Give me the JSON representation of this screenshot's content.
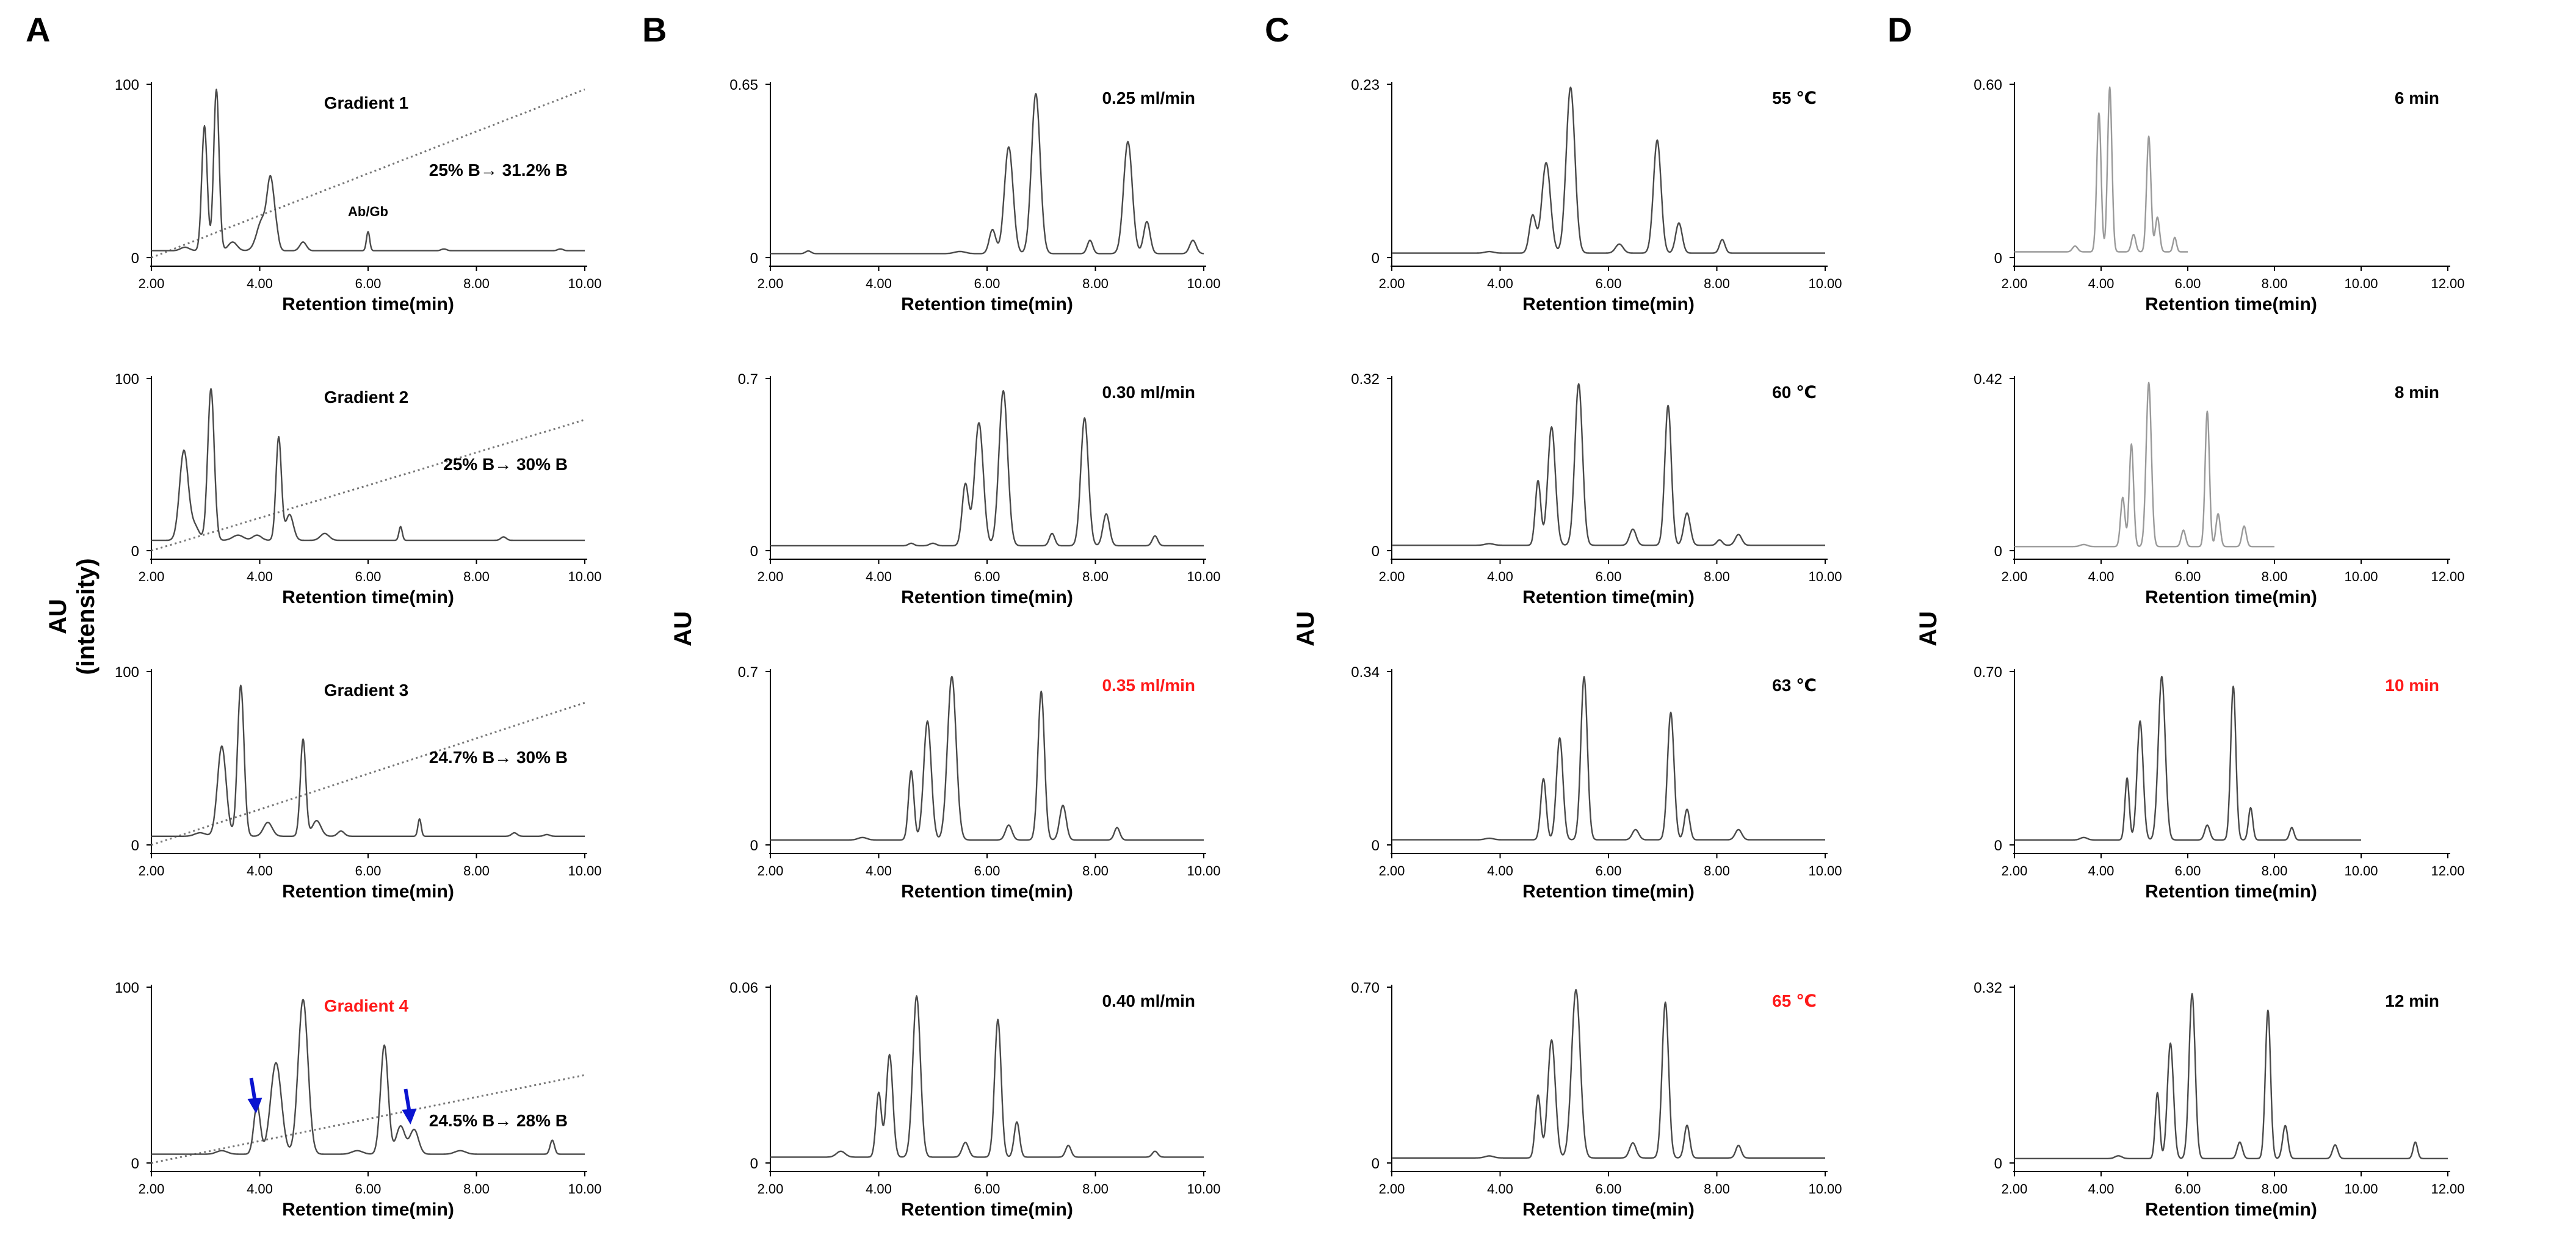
{
  "panel_letters": [
    "A",
    "B",
    "C",
    "D"
  ],
  "left_label_A": [
    "AU",
    "(intensity)"
  ],
  "axis_label_au": "AU",
  "colors": {
    "trace": "#4a4a4a",
    "trace_light": "#9a9a9a",
    "highlight": "#ff1a1a",
    "arrow": "#0a14d0",
    "text": "#000000"
  },
  "chart_data": [
    {
      "type": "line",
      "panel": "A",
      "title": "Gradient 1",
      "title_highlight": false,
      "annotation": "25% B→ 31.2% B",
      "peak_label": "Ab/Gb",
      "xlabel": "Retention time(min)",
      "ylim": [
        0,
        100
      ],
      "xlim": [
        2,
        10
      ],
      "xticks": [
        "2.00",
        "4.00",
        "6.00",
        "8.00",
        "10.00"
      ],
      "yticks": [
        "0",
        "100"
      ],
      "baseline": 4,
      "trace_end": 10,
      "gradient_line": {
        "x": [
          2,
          10
        ],
        "y": [
          0,
          97
        ]
      },
      "peaks": [
        [
          2.62,
          2,
          0.08
        ],
        [
          2.98,
          72,
          0.05
        ],
        [
          3.2,
          93,
          0.05
        ],
        [
          3.5,
          5,
          0.08
        ],
        [
          4.05,
          18,
          0.1
        ],
        [
          4.2,
          36,
          0.06
        ],
        [
          4.3,
          10,
          0.05
        ],
        [
          4.8,
          5,
          0.06
        ],
        [
          6.0,
          11,
          0.03
        ],
        [
          7.4,
          1,
          0.05
        ],
        [
          9.55,
          1,
          0.05
        ]
      ]
    },
    {
      "type": "line",
      "panel": "A",
      "title": "Gradient 2",
      "title_highlight": false,
      "annotation": "25% B→ 30% B",
      "xlabel": "Retention time(min)",
      "ylim": [
        0,
        100
      ],
      "xlim": [
        2,
        10
      ],
      "xticks": [
        "2.00",
        "4.00",
        "6.00",
        "8.00",
        "10.00"
      ],
      "yticks": [
        "0",
        "100"
      ],
      "baseline": 6,
      "trace_end": 10,
      "gradient_line": {
        "x": [
          2,
          10
        ],
        "y": [
          0,
          76
        ]
      },
      "peaks": [
        [
          2.6,
          52,
          0.08
        ],
        [
          2.8,
          8,
          0.08
        ],
        [
          3.1,
          88,
          0.06
        ],
        [
          3.6,
          3,
          0.1
        ],
        [
          3.95,
          3,
          0.08
        ],
        [
          4.35,
          60,
          0.05
        ],
        [
          4.55,
          15,
          0.07
        ],
        [
          5.2,
          4,
          0.08
        ],
        [
          6.6,
          8,
          0.03
        ],
        [
          8.5,
          2,
          0.05
        ]
      ]
    },
    {
      "type": "line",
      "panel": "A",
      "title": "Gradient 3",
      "title_highlight": false,
      "annotation": "24.7% B→ 30% B",
      "xlabel": "Retention time(min)",
      "ylim": [
        0,
        100
      ],
      "xlim": [
        2,
        10
      ],
      "xticks": [
        "2.00",
        "4.00",
        "6.00",
        "8.00",
        "10.00"
      ],
      "yticks": [
        "0",
        "100"
      ],
      "baseline": 5,
      "trace_end": 10,
      "gradient_line": {
        "x": [
          2,
          10
        ],
        "y": [
          0,
          82
        ]
      },
      "peaks": [
        [
          2.9,
          2,
          0.1
        ],
        [
          3.3,
          52,
          0.08
        ],
        [
          3.65,
          87,
          0.06
        ],
        [
          4.15,
          8,
          0.08
        ],
        [
          4.8,
          56,
          0.05
        ],
        [
          5.05,
          9,
          0.08
        ],
        [
          5.5,
          3,
          0.06
        ],
        [
          6.95,
          10,
          0.03
        ],
        [
          8.7,
          2,
          0.05
        ],
        [
          9.3,
          1,
          0.05
        ]
      ]
    },
    {
      "type": "line",
      "panel": "A",
      "title": "Gradient 4",
      "title_highlight": true,
      "annotation": "24.5% B→ 28% B",
      "xlabel": "Retention time(min)",
      "ylim": [
        0,
        100
      ],
      "xlim": [
        2,
        10
      ],
      "xticks": [
        "2.00",
        "4.00",
        "6.00",
        "8.00",
        "10.00"
      ],
      "yticks": [
        "0",
        "100"
      ],
      "baseline": 5,
      "trace_end": 10,
      "gradient_line": {
        "x": [
          2,
          10
        ],
        "y": [
          0,
          50
        ]
      },
      "arrows": [
        4.0,
        6.85
      ],
      "peaks": [
        [
          3.3,
          2,
          0.1
        ],
        [
          3.95,
          28,
          0.06
        ],
        [
          4.3,
          52,
          0.1
        ],
        [
          4.8,
          88,
          0.09
        ],
        [
          5.8,
          2,
          0.1
        ],
        [
          6.3,
          62,
          0.07
        ],
        [
          6.6,
          16,
          0.08
        ],
        [
          6.85,
          14,
          0.08
        ],
        [
          7.7,
          2,
          0.1
        ],
        [
          9.4,
          8,
          0.04
        ]
      ]
    },
    {
      "type": "line",
      "panel": "B",
      "title": "0.25 ml/min",
      "title_highlight": false,
      "xlabel": "Retention time(min)",
      "ylim": [
        0,
        0.65
      ],
      "xlim": [
        2,
        10
      ],
      "xticks": [
        "2.00",
        "4.00",
        "6.00",
        "8.00",
        "10.00"
      ],
      "yticks": [
        "0",
        "0.65"
      ],
      "baseline": 0.015,
      "trace_end": 10,
      "peaks": [
        [
          2.7,
          0.01,
          0.05
        ],
        [
          5.5,
          0.008,
          0.1
        ],
        [
          6.1,
          0.09,
          0.06
        ],
        [
          6.4,
          0.4,
          0.08
        ],
        [
          6.9,
          0.6,
          0.08
        ],
        [
          7.9,
          0.05,
          0.05
        ],
        [
          8.6,
          0.42,
          0.08
        ],
        [
          8.95,
          0.12,
          0.06
        ],
        [
          9.8,
          0.05,
          0.06
        ]
      ]
    },
    {
      "type": "line",
      "panel": "B",
      "title": "0.30 ml/min",
      "title_highlight": false,
      "xlabel": "Retention time(min)",
      "ylim": [
        0,
        0.7
      ],
      "xlim": [
        2,
        10
      ],
      "xticks": [
        "2.00",
        "4.00",
        "6.00",
        "8.00",
        "10.00"
      ],
      "yticks": [
        "0",
        "0.7"
      ],
      "baseline": 0.02,
      "trace_end": 10,
      "peaks": [
        [
          4.6,
          0.01,
          0.05
        ],
        [
          5.0,
          0.01,
          0.06
        ],
        [
          5.6,
          0.25,
          0.06
        ],
        [
          5.85,
          0.5,
          0.08
        ],
        [
          6.3,
          0.63,
          0.08
        ],
        [
          7.2,
          0.05,
          0.05
        ],
        [
          7.8,
          0.52,
          0.07
        ],
        [
          8.2,
          0.13,
          0.06
        ],
        [
          9.1,
          0.04,
          0.05
        ]
      ]
    },
    {
      "type": "line",
      "panel": "B",
      "title": "0.35 ml/min",
      "title_highlight": true,
      "xlabel": "Retention time(min)",
      "ylim": [
        0,
        0.7
      ],
      "xlim": [
        2,
        10
      ],
      "xticks": [
        "2.00",
        "4.00",
        "6.00",
        "8.00",
        "10.00"
      ],
      "yticks": [
        "0",
        "0.7"
      ],
      "baseline": 0.02,
      "trace_end": 10,
      "peaks": [
        [
          3.7,
          0.01,
          0.08
        ],
        [
          4.6,
          0.28,
          0.05
        ],
        [
          4.9,
          0.48,
          0.07
        ],
        [
          5.35,
          0.66,
          0.08
        ],
        [
          6.4,
          0.06,
          0.06
        ],
        [
          7.0,
          0.6,
          0.06
        ],
        [
          7.4,
          0.14,
          0.06
        ],
        [
          8.4,
          0.05,
          0.05
        ]
      ]
    },
    {
      "type": "line",
      "panel": "B",
      "title": "0.40 ml/min",
      "title_highlight": false,
      "xlabel": "Retention time(min)",
      "ylim": [
        0,
        0.06
      ],
      "xlim": [
        2,
        10
      ],
      "xticks": [
        "2.00",
        "4.00",
        "6.00",
        "8.00",
        "10.00"
      ],
      "yticks": [
        "0",
        "0.06"
      ],
      "baseline": 0.002,
      "trace_end": 10,
      "peaks": [
        [
          3.3,
          0.002,
          0.08
        ],
        [
          4.0,
          0.022,
          0.05
        ],
        [
          4.2,
          0.035,
          0.06
        ],
        [
          4.7,
          0.055,
          0.07
        ],
        [
          5.6,
          0.005,
          0.06
        ],
        [
          6.2,
          0.047,
          0.06
        ],
        [
          6.55,
          0.012,
          0.05
        ],
        [
          7.5,
          0.004,
          0.05
        ],
        [
          9.1,
          0.002,
          0.05
        ]
      ]
    },
    {
      "type": "line",
      "panel": "C",
      "title": "55 ℃",
      "title_highlight": false,
      "xlabel": "Retention time(min)",
      "ylim": [
        0,
        0.23
      ],
      "xlim": [
        2,
        10
      ],
      "xticks": [
        "2.00",
        "4.00",
        "6.00",
        "8.00",
        "10.00"
      ],
      "yticks": [
        "0",
        "0.23"
      ],
      "baseline": 0.006,
      "trace_end": 10,
      "peaks": [
        [
          3.8,
          0.002,
          0.08
        ],
        [
          4.6,
          0.05,
          0.06
        ],
        [
          4.85,
          0.12,
          0.08
        ],
        [
          5.3,
          0.22,
          0.08
        ],
        [
          6.2,
          0.012,
          0.07
        ],
        [
          6.9,
          0.15,
          0.07
        ],
        [
          7.3,
          0.04,
          0.06
        ],
        [
          8.1,
          0.018,
          0.05
        ]
      ]
    },
    {
      "type": "line",
      "panel": "C",
      "title": "60 ℃",
      "title_highlight": false,
      "xlabel": "Retention time(min)",
      "ylim": [
        0,
        0.32
      ],
      "xlim": [
        2,
        10
      ],
      "xticks": [
        "2.00",
        "4.00",
        "6.00",
        "8.00",
        "10.00"
      ],
      "yticks": [
        "0",
        "0.32"
      ],
      "baseline": 0.01,
      "trace_end": 10,
      "peaks": [
        [
          3.8,
          0.003,
          0.08
        ],
        [
          4.7,
          0.12,
          0.05
        ],
        [
          4.95,
          0.22,
          0.07
        ],
        [
          5.45,
          0.3,
          0.07
        ],
        [
          6.45,
          0.03,
          0.06
        ],
        [
          7.1,
          0.26,
          0.06
        ],
        [
          7.45,
          0.06,
          0.06
        ],
        [
          8.05,
          0.01,
          0.05
        ],
        [
          8.4,
          0.02,
          0.06
        ]
      ]
    },
    {
      "type": "line",
      "panel": "C",
      "title": "63 ℃",
      "title_highlight": false,
      "xlabel": "Retention time(min)",
      "ylim": [
        0,
        0.34
      ],
      "xlim": [
        2,
        10
      ],
      "xticks": [
        "2.00",
        "4.00",
        "6.00",
        "8.00",
        "10.00"
      ],
      "yticks": [
        "0",
        "0.34"
      ],
      "baseline": 0.01,
      "trace_end": 10,
      "peaks": [
        [
          3.8,
          0.003,
          0.08
        ],
        [
          4.8,
          0.12,
          0.05
        ],
        [
          5.1,
          0.2,
          0.06
        ],
        [
          5.55,
          0.32,
          0.06
        ],
        [
          6.5,
          0.02,
          0.06
        ],
        [
          7.15,
          0.25,
          0.06
        ],
        [
          7.45,
          0.06,
          0.05
        ],
        [
          8.4,
          0.02,
          0.06
        ]
      ]
    },
    {
      "type": "line",
      "panel": "C",
      "title": "65 ℃",
      "title_highlight": true,
      "xlabel": "Retention time(min)",
      "ylim": [
        0,
        0.7
      ],
      "xlim": [
        2,
        10
      ],
      "xticks": [
        "2.00",
        "4.00",
        "6.00",
        "8.00",
        "10.00"
      ],
      "yticks": [
        "0",
        "0.70"
      ],
      "baseline": 0.02,
      "trace_end": 10,
      "peaks": [
        [
          3.8,
          0.008,
          0.08
        ],
        [
          4.7,
          0.25,
          0.05
        ],
        [
          4.95,
          0.47,
          0.07
        ],
        [
          5.4,
          0.67,
          0.08
        ],
        [
          6.45,
          0.06,
          0.06
        ],
        [
          7.05,
          0.62,
          0.06
        ],
        [
          7.45,
          0.13,
          0.05
        ],
        [
          8.4,
          0.05,
          0.05
        ]
      ]
    },
    {
      "type": "line",
      "panel": "D",
      "title": "6 min",
      "title_highlight": false,
      "trace_light": true,
      "xlabel": "Retention time(min)",
      "ylim": [
        0,
        0.6
      ],
      "xlim": [
        2,
        12
      ],
      "xticks": [
        "2.00",
        "4.00",
        "6.00",
        "8.00",
        "10.00",
        "12.00"
      ],
      "yticks": [
        "0",
        "0.60"
      ],
      "baseline": 0.02,
      "trace_end": 6,
      "peaks": [
        [
          3.4,
          0.02,
          0.06
        ],
        [
          3.95,
          0.48,
          0.05
        ],
        [
          4.2,
          0.57,
          0.05
        ],
        [
          4.75,
          0.06,
          0.05
        ],
        [
          5.1,
          0.4,
          0.05
        ],
        [
          5.3,
          0.12,
          0.05
        ],
        [
          5.7,
          0.05,
          0.04
        ]
      ]
    },
    {
      "type": "line",
      "panel": "D",
      "title": "8 min",
      "title_highlight": false,
      "trace_light": true,
      "xlabel": "Retention time(min)",
      "ylim": [
        0,
        0.42
      ],
      "xlim": [
        2,
        12
      ],
      "xticks": [
        "2.00",
        "4.00",
        "6.00",
        "8.00",
        "10.00",
        "12.00"
      ],
      "yticks": [
        "0",
        "0.42"
      ],
      "baseline": 0.01,
      "trace_end": 8,
      "peaks": [
        [
          3.6,
          0.005,
          0.08
        ],
        [
          4.5,
          0.12,
          0.05
        ],
        [
          4.7,
          0.25,
          0.05
        ],
        [
          5.1,
          0.4,
          0.06
        ],
        [
          5.9,
          0.04,
          0.05
        ],
        [
          6.45,
          0.33,
          0.05
        ],
        [
          6.7,
          0.08,
          0.05
        ],
        [
          7.3,
          0.05,
          0.05
        ]
      ]
    },
    {
      "type": "line",
      "panel": "D",
      "title": "10 min",
      "title_highlight": true,
      "xlabel": "Retention time(min)",
      "ylim": [
        0,
        0.7
      ],
      "xlim": [
        2,
        12
      ],
      "xticks": [
        "2.00",
        "4.00",
        "6.00",
        "8.00",
        "10.00",
        "12.00"
      ],
      "yticks": [
        "0",
        "0.70"
      ],
      "baseline": 0.02,
      "trace_end": 10,
      "peaks": [
        [
          3.6,
          0.01,
          0.08
        ],
        [
          4.6,
          0.25,
          0.05
        ],
        [
          4.9,
          0.48,
          0.07
        ],
        [
          5.4,
          0.66,
          0.08
        ],
        [
          6.45,
          0.06,
          0.06
        ],
        [
          7.05,
          0.62,
          0.06
        ],
        [
          7.45,
          0.13,
          0.05
        ],
        [
          8.4,
          0.05,
          0.05
        ]
      ]
    },
    {
      "type": "line",
      "panel": "D",
      "title": "12 min",
      "title_highlight": false,
      "xlabel": "Retention time(min)",
      "ylim": [
        0,
        0.32
      ],
      "xlim": [
        2,
        12
      ],
      "xticks": [
        "2.00",
        "4.00",
        "6.00",
        "8.00",
        "10.00",
        "12.00"
      ],
      "yticks": [
        "0",
        "0.32"
      ],
      "baseline": 0.008,
      "trace_end": 12,
      "peaks": [
        [
          4.4,
          0.005,
          0.08
        ],
        [
          5.3,
          0.12,
          0.05
        ],
        [
          5.6,
          0.21,
          0.07
        ],
        [
          6.1,
          0.3,
          0.07
        ],
        [
          7.2,
          0.03,
          0.06
        ],
        [
          7.85,
          0.27,
          0.06
        ],
        [
          8.25,
          0.06,
          0.06
        ],
        [
          9.4,
          0.025,
          0.06
        ],
        [
          11.25,
          0.03,
          0.05
        ]
      ]
    }
  ]
}
